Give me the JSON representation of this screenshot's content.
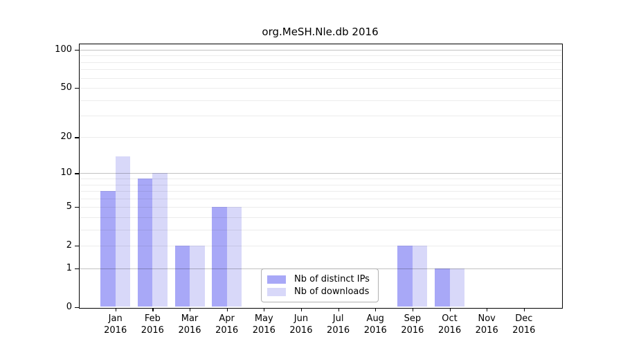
{
  "chart_data": {
    "type": "bar",
    "title": "org.MeSH.Nle.db 2016",
    "categories": [
      "Jan 2016",
      "Feb 2016",
      "Mar 2016",
      "Apr 2016",
      "May 2016",
      "Jun 2016",
      "Jul 2016",
      "Aug 2016",
      "Sep 2016",
      "Oct 2016",
      "Nov 2016",
      "Dec 2016"
    ],
    "series": [
      {
        "name": "Nb of distinct IPs",
        "color": "#a8a8f7",
        "values": [
          7,
          9,
          2,
          5,
          0,
          0,
          0,
          0,
          2,
          1,
          0,
          0
        ]
      },
      {
        "name": "Nb of downloads",
        "color": "#d8d8f9",
        "values": [
          14,
          10,
          2,
          5,
          0,
          0,
          0,
          0,
          2,
          1,
          0,
          0
        ]
      }
    ],
    "xlabel": "",
    "ylabel": "",
    "yscale": "log1p",
    "ylim": [
      0,
      112
    ],
    "y_tick_values": [
      0,
      1,
      2,
      5,
      10,
      20,
      50,
      100
    ],
    "y_tick_labels": [
      "0",
      "1",
      "2",
      "5",
      "10",
      "20",
      "50",
      "100"
    ],
    "gridlines_major": [
      1,
      10,
      100
    ],
    "gridlines_minor": [
      2,
      3,
      4,
      5,
      6,
      7,
      8,
      9,
      20,
      30,
      40,
      50,
      60,
      70,
      80,
      90
    ],
    "grid": true,
    "legend_position": "lower center",
    "legend_items": [
      "Nb of distinct IPs",
      "Nb of downloads"
    ]
  }
}
